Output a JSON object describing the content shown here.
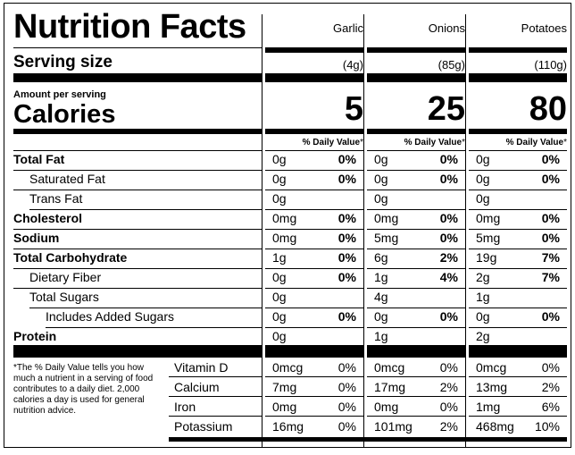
{
  "title": "Nutrition Facts",
  "serving_size_label": "Serving size",
  "amount_per_serving": "Amount per serving",
  "calories_label": "Calories",
  "dv_header": "% Daily Value",
  "dv_asterisk": "*",
  "foods": [
    {
      "name": "Garlic",
      "serving": "(4g)",
      "calories": "5"
    },
    {
      "name": "Onions",
      "serving": "(85g)",
      "calories": "25"
    },
    {
      "name": "Potatoes",
      "serving": "(110g)",
      "calories": "80"
    }
  ],
  "nutrients": [
    {
      "label": "Total Fat",
      "bold": true,
      "values": [
        [
          "0g",
          "0%"
        ],
        [
          "0g",
          "0%"
        ],
        [
          "0g",
          "0%"
        ]
      ]
    },
    {
      "label": "Saturated Fat",
      "bold": false,
      "values": [
        [
          "0g",
          "0%"
        ],
        [
          "0g",
          "0%"
        ],
        [
          "0g",
          "0%"
        ]
      ]
    },
    {
      "label": "Trans Fat",
      "bold": false,
      "values": [
        [
          "0g",
          ""
        ],
        [
          "0g",
          ""
        ],
        [
          "0g",
          ""
        ]
      ]
    },
    {
      "label": "Cholesterol",
      "bold": true,
      "values": [
        [
          "0mg",
          "0%"
        ],
        [
          "0mg",
          "0%"
        ],
        [
          "0mg",
          "0%"
        ]
      ]
    },
    {
      "label": "Sodium",
      "bold": true,
      "values": [
        [
          "0mg",
          "0%"
        ],
        [
          "5mg",
          "0%"
        ],
        [
          "5mg",
          "0%"
        ]
      ]
    },
    {
      "label": "Total Carbohydrate",
      "bold": true,
      "values": [
        [
          "1g",
          "0%"
        ],
        [
          "6g",
          "2%"
        ],
        [
          "19g",
          "7%"
        ]
      ]
    },
    {
      "label": "Dietary Fiber",
      "bold": false,
      "values": [
        [
          "0g",
          "0%"
        ],
        [
          "1g",
          "4%"
        ],
        [
          "2g",
          "7%"
        ]
      ]
    },
    {
      "label": "Total Sugars",
      "bold": false,
      "values": [
        [
          "0g",
          ""
        ],
        [
          "4g",
          ""
        ],
        [
          "1g",
          ""
        ]
      ]
    },
    {
      "label": "Includes Added Sugars",
      "bold": false,
      "values": [
        [
          "0g",
          "0%"
        ],
        [
          "0g",
          "0%"
        ],
        [
          "0g",
          "0%"
        ]
      ]
    },
    {
      "label": "Protein",
      "bold": true,
      "values": [
        [
          "0g",
          ""
        ],
        [
          "1g",
          ""
        ],
        [
          "2g",
          ""
        ]
      ]
    }
  ],
  "vitamins": [
    {
      "label": "Vitamin D",
      "values": [
        [
          "0mcg",
          "0%"
        ],
        [
          "0mcg",
          "0%"
        ],
        [
          "0mcg",
          "0%"
        ]
      ]
    },
    {
      "label": "Calcium",
      "values": [
        [
          "7mg",
          "0%"
        ],
        [
          "17mg",
          "2%"
        ],
        [
          "13mg",
          "2%"
        ]
      ]
    },
    {
      "label": "Iron",
      "values": [
        [
          "0mg",
          "0%"
        ],
        [
          "0mg",
          "0%"
        ],
        [
          "1mg",
          "6%"
        ]
      ]
    },
    {
      "label": "Potassium",
      "values": [
        [
          "16mg",
          "0%"
        ],
        [
          "101mg",
          "2%"
        ],
        [
          "468mg",
          "10%"
        ]
      ]
    }
  ],
  "footnote": "*The % Daily Value tells you how much a nutrient in a serving of food contributes to a daily diet. 2,000 calories a day is used for general nutrition advice."
}
